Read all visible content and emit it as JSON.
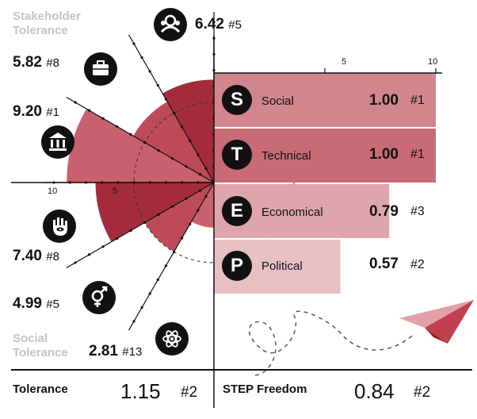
{
  "labels": {
    "stakeholder_tolerance": [
      "Stakeholder",
      "Tolerance"
    ],
    "social_tolerance": [
      "Social",
      "Tolerance"
    ]
  },
  "chart_data": [
    {
      "type": "radial-bar",
      "xlim": [
        0,
        10
      ],
      "ticks": [
        "10",
        "5"
      ],
      "items": [
        {
          "icon": "group-icon",
          "value": 6.42,
          "value_text": "6.42",
          "rank": "#5"
        },
        {
          "icon": "briefcase-icon",
          "value": 5.82,
          "value_text": "5.82",
          "rank": "#8"
        },
        {
          "icon": "government-building-icon",
          "value": 9.2,
          "value_text": "9.20",
          "rank": "#1"
        },
        {
          "icon": "hamsa-hand-icon",
          "value": 7.4,
          "value_text": "7.40",
          "rank": "#8"
        },
        {
          "icon": "gender-symbol-icon",
          "value": 4.99,
          "value_text": "4.99",
          "rank": "#5"
        },
        {
          "icon": "atom-icon",
          "value": 2.81,
          "value_text": "2.81",
          "rank": "#13"
        }
      ]
    },
    {
      "type": "bar",
      "xlim": [
        0,
        10
      ],
      "ticks": [
        "5",
        "10"
      ],
      "series": [
        {
          "letter": "S",
          "name": "Social",
          "value": 1.0,
          "value_text": "1.00",
          "rank": "#1",
          "color": "#d1868e"
        },
        {
          "letter": "T",
          "name": "Technical",
          "value": 1.0,
          "value_text": "1.00",
          "rank": "#1",
          "color": "#c96b76"
        },
        {
          "letter": "E",
          "name": "Economical",
          "value": 0.79,
          "value_text": "0.79",
          "rank": "#3",
          "color": "#dfa5ac"
        },
        {
          "letter": "P",
          "name": "Political",
          "value": 0.57,
          "value_text": "0.57",
          "rank": "#2",
          "color": "#e8c0c4"
        }
      ]
    }
  ],
  "footer": {
    "left": {
      "label": "Tolerance",
      "value": "1.15",
      "rank": "#2"
    },
    "right": {
      "label": "STEP Freedom",
      "value": "0.84",
      "rank": "#2"
    }
  },
  "colors": {
    "dark_red": "#a42c3a",
    "mid_red": "#be4a58",
    "light_red": "#c9606d",
    "ink": "#111111"
  }
}
